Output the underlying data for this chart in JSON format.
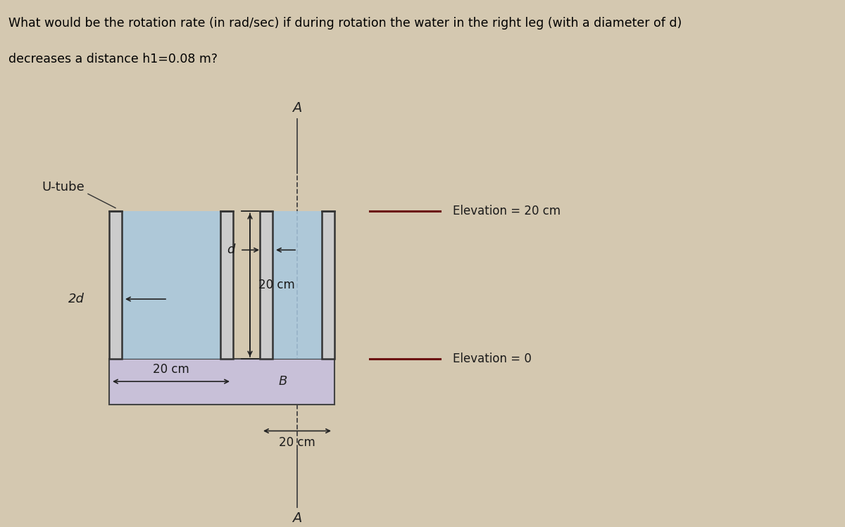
{
  "title_text_line1": "What would be the rotation rate (in rad/sec) if during rotation the water in the right leg (with a diameter of d)",
  "title_text_line2": "decreases a distance h1=0.08 m?",
  "title_bg_color": "#8faec8",
  "body_bg_color": "#d4c8b0",
  "base_fill_color": "#c8c0d8",
  "base_edge_color": "#444444",
  "water_color": "#a8c8e0",
  "tube_wall_color": "#333333",
  "elev_line_color": "#6b1010",
  "annotation_color": "#222222",
  "arrow_color": "#222222",
  "fig_width": 12.0,
  "fig_height": 7.49,
  "elevation_20cm_label": "Elevation = 20 cm",
  "elevation_0_label": "Elevation = 0",
  "label_utube": "U-tube",
  "label_2d": "2d",
  "label_d": "d",
  "label_20cm_vert": "20 cm",
  "label_20cm_horiz1": "20 cm",
  "label_20cm_horiz2": "20 cm",
  "label_A": "A",
  "label_B": "B"
}
